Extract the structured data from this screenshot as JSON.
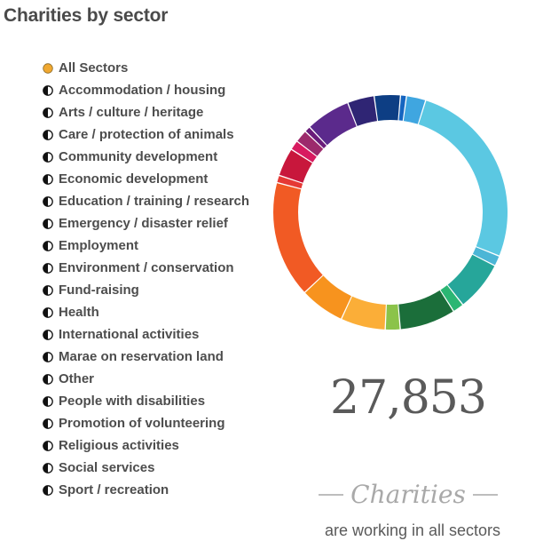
{
  "title": "Charities by sector",
  "legend": [
    {
      "label": "All Sectors",
      "active": true
    },
    {
      "label": "Accommodation / housing",
      "active": false
    },
    {
      "label": "Arts / culture / heritage",
      "active": false
    },
    {
      "label": "Care / protection of animals",
      "active": false
    },
    {
      "label": "Community development",
      "active": false
    },
    {
      "label": "Economic development",
      "active": false
    },
    {
      "label": "Education / training / research",
      "active": false
    },
    {
      "label": "Emergency / disaster relief",
      "active": false
    },
    {
      "label": "Employment",
      "active": false
    },
    {
      "label": "Environment / conservation",
      "active": false
    },
    {
      "label": "Fund-raising",
      "active": false
    },
    {
      "label": "Health",
      "active": false
    },
    {
      "label": "International activities",
      "active": false
    },
    {
      "label": "Marae on reservation land",
      "active": false
    },
    {
      "label": "Other",
      "active": false
    },
    {
      "label": "People with disabilities",
      "active": false
    },
    {
      "label": "Promotion of volunteering",
      "active": false
    },
    {
      "label": "Religious activities",
      "active": false
    },
    {
      "label": "Social services",
      "active": false
    },
    {
      "label": "Sport / recreation",
      "active": false
    }
  ],
  "colors": {
    "active_dot": "#f0a830",
    "inactive_dot": "#111111",
    "text": "#4d4d4d"
  },
  "summary": {
    "count": "27,853",
    "label": "Charities",
    "caption": "are working in all sectors"
  },
  "chart_data": {
    "type": "pie",
    "style": "donut",
    "start_angle_deg": -8,
    "slices": [
      {
        "value": 3.5,
        "color": "#0d3e84"
      },
      {
        "value": 0.8,
        "color": "#1565c0"
      },
      {
        "value": 2.6,
        "color": "#3fa6e0"
      },
      {
        "value": 25.5,
        "color": "#5bc8e2"
      },
      {
        "value": 1.4,
        "color": "#4cb6d6"
      },
      {
        "value": 6.7,
        "color": "#26a69a"
      },
      {
        "value": 1.5,
        "color": "#2bb673"
      },
      {
        "value": 7.5,
        "color": "#1b6e3a"
      },
      {
        "value": 2.0,
        "color": "#8bc34a"
      },
      {
        "value": 6.0,
        "color": "#fbae38"
      },
      {
        "value": 6.0,
        "color": "#f7931e"
      },
      {
        "value": 15.6,
        "color": "#f15a24"
      },
      {
        "value": 1.0,
        "color": "#e53935"
      },
      {
        "value": 3.8,
        "color": "#c8173c"
      },
      {
        "value": 1.3,
        "color": "#d81b60"
      },
      {
        "value": 1.7,
        "color": "#9c2a6c"
      },
      {
        "value": 0.8,
        "color": "#6a1b7a"
      },
      {
        "value": 6.0,
        "color": "#5b2a8c"
      },
      {
        "value": 3.6,
        "color": "#2f2574"
      }
    ]
  }
}
